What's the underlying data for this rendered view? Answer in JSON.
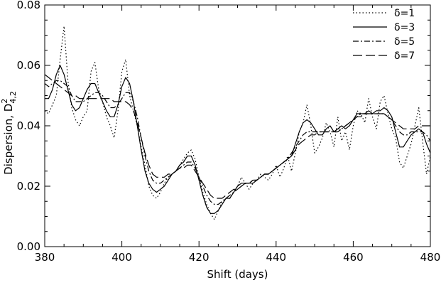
{
  "chart_data": {
    "type": "line",
    "xlabel": "Shift (days)",
    "ylabel": "Dispersion, D",
    "ylabel_sup": "2",
    "ylabel_sub": "4,2",
    "xlim": [
      380,
      480
    ],
    "ylim": [
      0.0,
      0.08
    ],
    "x_ticks": [
      380,
      400,
      420,
      440,
      460,
      480
    ],
    "x_tick_labels": [
      "380",
      "400",
      "420",
      "440",
      "460",
      "480"
    ],
    "y_ticks": [
      0.0,
      0.02,
      0.04,
      0.06,
      0.08
    ],
    "y_tick_labels": [
      "0.00",
      "0.02",
      "0.04",
      "0.06",
      "0.08"
    ],
    "grid": false,
    "legend_position": "top-right",
    "series": [
      {
        "name": "δ=1",
        "dash": "dotted",
        "x": [
          380,
          381,
          382,
          383,
          384,
          385,
          386,
          387,
          388,
          389,
          390,
          391,
          392,
          393,
          394,
          395,
          396,
          397,
          398,
          399,
          400,
          401,
          402,
          403,
          404,
          405,
          406,
          407,
          408,
          409,
          410,
          411,
          412,
          413,
          414,
          415,
          416,
          417,
          418,
          419,
          420,
          421,
          422,
          423,
          424,
          425,
          426,
          427,
          428,
          429,
          430,
          431,
          432,
          433,
          434,
          435,
          436,
          437,
          438,
          439,
          440,
          441,
          442,
          443,
          444,
          445,
          446,
          447,
          448,
          449,
          450,
          451,
          452,
          453,
          454,
          455,
          456,
          457,
          458,
          459,
          460,
          461,
          462,
          463,
          464,
          465,
          466,
          467,
          468,
          469,
          470,
          471,
          472,
          473,
          474,
          475,
          476,
          477,
          478,
          479,
          480
        ],
        "y": [
          0.045,
          0.044,
          0.047,
          0.05,
          0.062,
          0.073,
          0.055,
          0.046,
          0.042,
          0.04,
          0.043,
          0.045,
          0.058,
          0.061,
          0.052,
          0.048,
          0.043,
          0.04,
          0.036,
          0.045,
          0.058,
          0.062,
          0.05,
          0.045,
          0.04,
          0.033,
          0.027,
          0.02,
          0.017,
          0.016,
          0.018,
          0.021,
          0.023,
          0.024,
          0.025,
          0.027,
          0.029,
          0.031,
          0.032,
          0.029,
          0.023,
          0.018,
          0.014,
          0.011,
          0.009,
          0.012,
          0.015,
          0.016,
          0.016,
          0.018,
          0.02,
          0.023,
          0.021,
          0.019,
          0.021,
          0.022,
          0.024,
          0.023,
          0.022,
          0.024,
          0.027,
          0.023,
          0.026,
          0.03,
          0.025,
          0.031,
          0.038,
          0.041,
          0.047,
          0.04,
          0.031,
          0.033,
          0.036,
          0.041,
          0.038,
          0.033,
          0.043,
          0.035,
          0.038,
          0.032,
          0.04,
          0.045,
          0.044,
          0.041,
          0.049,
          0.043,
          0.039,
          0.048,
          0.05,
          0.044,
          0.039,
          0.036,
          0.028,
          0.026,
          0.03,
          0.034,
          0.04,
          0.046,
          0.035,
          0.024,
          0.03
        ]
      },
      {
        "name": "δ=3",
        "dash": "solid",
        "x": [
          380,
          381,
          382,
          383,
          384,
          385,
          386,
          387,
          388,
          389,
          390,
          391,
          392,
          393,
          394,
          395,
          396,
          397,
          398,
          399,
          400,
          401,
          402,
          403,
          404,
          405,
          406,
          407,
          408,
          409,
          410,
          411,
          412,
          413,
          414,
          415,
          416,
          417,
          418,
          419,
          420,
          421,
          422,
          423,
          424,
          425,
          426,
          427,
          428,
          429,
          430,
          431,
          432,
          433,
          434,
          435,
          436,
          437,
          438,
          439,
          440,
          441,
          442,
          443,
          444,
          445,
          446,
          447,
          448,
          449,
          450,
          451,
          452,
          453,
          454,
          455,
          456,
          457,
          458,
          459,
          460,
          461,
          462,
          463,
          464,
          465,
          466,
          467,
          468,
          469,
          470,
          471,
          472,
          473,
          474,
          475,
          476,
          477,
          478,
          479,
          480
        ],
        "y": [
          0.049,
          0.049,
          0.052,
          0.057,
          0.06,
          0.057,
          0.052,
          0.047,
          0.045,
          0.046,
          0.049,
          0.052,
          0.054,
          0.054,
          0.051,
          0.048,
          0.045,
          0.043,
          0.043,
          0.047,
          0.053,
          0.056,
          0.054,
          0.048,
          0.04,
          0.032,
          0.025,
          0.021,
          0.019,
          0.018,
          0.019,
          0.02,
          0.022,
          0.024,
          0.025,
          0.027,
          0.028,
          0.03,
          0.03,
          0.027,
          0.022,
          0.017,
          0.013,
          0.011,
          0.011,
          0.012,
          0.014,
          0.016,
          0.016,
          0.018,
          0.02,
          0.021,
          0.021,
          0.021,
          0.021,
          0.022,
          0.023,
          0.024,
          0.024,
          0.025,
          0.026,
          0.027,
          0.028,
          0.029,
          0.03,
          0.034,
          0.038,
          0.041,
          0.042,
          0.041,
          0.039,
          0.037,
          0.037,
          0.039,
          0.04,
          0.038,
          0.039,
          0.04,
          0.039,
          0.04,
          0.042,
          0.044,
          0.044,
          0.044,
          0.045,
          0.044,
          0.045,
          0.045,
          0.046,
          0.045,
          0.043,
          0.038,
          0.033,
          0.033,
          0.035,
          0.037,
          0.038,
          0.039,
          0.038,
          0.034,
          0.031
        ]
      },
      {
        "name": "δ=5",
        "dash": "dashdot",
        "x": [
          380,
          381,
          382,
          383,
          384,
          385,
          386,
          387,
          388,
          389,
          390,
          391,
          392,
          393,
          394,
          395,
          396,
          397,
          398,
          399,
          400,
          401,
          402,
          403,
          404,
          405,
          406,
          407,
          408,
          409,
          410,
          411,
          412,
          413,
          414,
          415,
          416,
          417,
          418,
          419,
          420,
          421,
          422,
          423,
          424,
          425,
          426,
          427,
          428,
          429,
          430,
          431,
          432,
          433,
          434,
          435,
          436,
          437,
          438,
          439,
          440,
          441,
          442,
          443,
          444,
          445,
          446,
          447,
          448,
          449,
          450,
          451,
          452,
          453,
          454,
          455,
          456,
          457,
          458,
          459,
          460,
          461,
          462,
          463,
          464,
          465,
          466,
          467,
          468,
          469,
          470,
          471,
          472,
          473,
          474,
          475,
          476,
          477,
          478,
          479,
          480
        ],
        "y": [
          0.054,
          0.053,
          0.054,
          0.055,
          0.055,
          0.054,
          0.053,
          0.05,
          0.048,
          0.048,
          0.048,
          0.049,
          0.05,
          0.051,
          0.051,
          0.05,
          0.048,
          0.046,
          0.046,
          0.047,
          0.049,
          0.051,
          0.051,
          0.048,
          0.043,
          0.036,
          0.03,
          0.025,
          0.022,
          0.021,
          0.021,
          0.022,
          0.023,
          0.024,
          0.025,
          0.026,
          0.027,
          0.028,
          0.028,
          0.026,
          0.023,
          0.02,
          0.017,
          0.015,
          0.014,
          0.014,
          0.015,
          0.016,
          0.017,
          0.018,
          0.019,
          0.02,
          0.021,
          0.021,
          0.022,
          0.022,
          0.023,
          0.024,
          0.024,
          0.025,
          0.026,
          0.027,
          0.028,
          0.029,
          0.031,
          0.033,
          0.035,
          0.037,
          0.038,
          0.038,
          0.038,
          0.038,
          0.038,
          0.038,
          0.038,
          0.038,
          0.039,
          0.039,
          0.04,
          0.041,
          0.042,
          0.043,
          0.044,
          0.044,
          0.044,
          0.044,
          0.044,
          0.044,
          0.044,
          0.043,
          0.042,
          0.04,
          0.038,
          0.037,
          0.037,
          0.038,
          0.038,
          0.038,
          0.038,
          0.037,
          0.035
        ]
      },
      {
        "name": "δ=7",
        "dash": "longdash",
        "x": [
          380,
          381,
          382,
          383,
          384,
          385,
          386,
          387,
          388,
          389,
          390,
          391,
          392,
          393,
          394,
          395,
          396,
          397,
          398,
          399,
          400,
          401,
          402,
          403,
          404,
          405,
          406,
          407,
          408,
          409,
          410,
          411,
          412,
          413,
          414,
          415,
          416,
          417,
          418,
          419,
          420,
          421,
          422,
          423,
          424,
          425,
          426,
          427,
          428,
          429,
          430,
          431,
          432,
          433,
          434,
          435,
          436,
          437,
          438,
          439,
          440,
          441,
          442,
          443,
          444,
          445,
          446,
          447,
          448,
          449,
          450,
          451,
          452,
          453,
          454,
          455,
          456,
          457,
          458,
          459,
          460,
          461,
          462,
          463,
          464,
          465,
          466,
          467,
          468,
          469,
          470,
          471,
          472,
          473,
          474,
          475,
          476,
          477,
          478,
          479,
          480
        ],
        "y": [
          0.057,
          0.056,
          0.055,
          0.054,
          0.053,
          0.052,
          0.051,
          0.05,
          0.05,
          0.049,
          0.049,
          0.049,
          0.049,
          0.049,
          0.049,
          0.049,
          0.049,
          0.049,
          0.048,
          0.048,
          0.048,
          0.048,
          0.047,
          0.045,
          0.041,
          0.036,
          0.031,
          0.027,
          0.024,
          0.023,
          0.023,
          0.023,
          0.024,
          0.024,
          0.025,
          0.026,
          0.026,
          0.027,
          0.027,
          0.025,
          0.023,
          0.021,
          0.019,
          0.017,
          0.016,
          0.016,
          0.016,
          0.017,
          0.018,
          0.019,
          0.019,
          0.02,
          0.021,
          0.021,
          0.022,
          0.022,
          0.023,
          0.024,
          0.024,
          0.025,
          0.026,
          0.027,
          0.028,
          0.029,
          0.03,
          0.032,
          0.034,
          0.035,
          0.036,
          0.037,
          0.037,
          0.038,
          0.038,
          0.038,
          0.038,
          0.038,
          0.038,
          0.039,
          0.04,
          0.041,
          0.042,
          0.043,
          0.043,
          0.044,
          0.044,
          0.044,
          0.044,
          0.044,
          0.044,
          0.043,
          0.042,
          0.041,
          0.04,
          0.039,
          0.039,
          0.039,
          0.039,
          0.04,
          0.04,
          0.04,
          0.04
        ]
      }
    ]
  }
}
